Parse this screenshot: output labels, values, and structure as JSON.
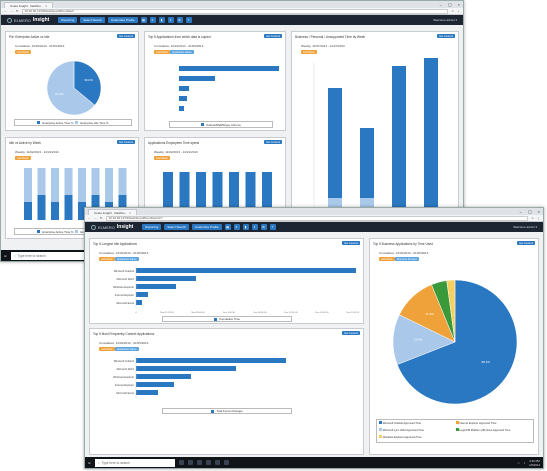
{
  "browser": {
    "tab_title": "Cueto Insight · Dashbo...",
    "tab_title2": "Cueto Insight · Dashbo...",
    "url": "10.20.60.197/#/dashboard/RootDash",
    "url2": "10.20.60.197/#/dashboard/RootDash/1/7"
  },
  "app": {
    "brand_small": "ELMERO",
    "brand": "Insight",
    "nav": [
      "Reporting",
      "Select Search",
      "Customize Profile"
    ],
    "welcome": "Welcome admin ▾"
  },
  "colors": {
    "blue": "#2a78c2",
    "light": "#a9c8ea",
    "orange": "#f0a23a"
  },
  "win1": {
    "p1": {
      "title": "Pie: Enterprise Active vs Idle",
      "get": "Get Content",
      "date": "Cumulative, 10/22/2013 - 01/06/2014",
      "btn": "Last Week",
      "pie": {
        "type": "pie",
        "values": [
          36.0,
          64.0
        ],
        "labels": [
          "36.0%",
          "64.0%"
        ]
      },
      "legend": [
        "Enterprise Active Time %",
        "Enterprise Idle Time %"
      ]
    },
    "p2": {
      "title": "Top 5 Applications from which data is copied",
      "get": "Get Content",
      "date": "Cumulative, 10/21/2013 - 01/06/2014",
      "btn1": "Last Week",
      "btn2": "Application Name",
      "legend": "Outlook/Mail/Skype Chrome"
    },
    "p3": {
      "title": "Business / Personal / Unsupported Time by Week",
      "get": "Get Content",
      "date": "Weekly, 11/07/2013 - 12/27/2013",
      "btn": "Last Week"
    },
    "p4": {
      "title": "Idle vs Active by Week",
      "get": "Get Content",
      "date": "Weekly, 11/02/2013 - 12/21/2013",
      "btn": "Last Week",
      "legend": [
        "Enterprise Active Time %",
        "Enterprise Idle Time %"
      ]
    },
    "p5": {
      "title": "Applications Employees Time spend",
      "get": "Get Content",
      "date": "Weekly, 11/02/2013 - 12/21/2013",
      "btn": "Last Week"
    }
  },
  "win2": {
    "q1": {
      "title": "Top 5 Longest Idle Applications",
      "get": "Get Content",
      "date": "Cumulative, 12/01/2013 - 01/05/2014",
      "btn1": "Last Week",
      "btn2": "Application Name",
      "legend": "Cumulative Time",
      "categories": [
        "Microsoft Outlook",
        "Microsoft Word",
        "Windows Explorer",
        "Internet Explorer",
        "Microsoft Excel"
      ],
      "xticks": [
        "0",
        "Nov 23 23:30",
        "Nov 28 00:00",
        "Dec 3 00:30",
        "Dec 08 01:00",
        "Dec 13 01:30",
        "Dec 18 02:00",
        "Dec 23 02:30"
      ]
    },
    "q2": {
      "title": "Top 5 Most Frequently Context Applications",
      "get": "Get Content",
      "date": "Cumulative, 12/01/2013 - 01/05/2014",
      "btn1": "Last Week",
      "btn2": "Application Name",
      "legend": "Total Focus Changes",
      "categories": [
        "Microsoft Outlook",
        "Microsoft Word",
        "Windows Explorer",
        "Internet Explorer",
        "Microsoft Excel"
      ]
    },
    "q3": {
      "title": "Top 5 Business Applications by Time Used",
      "get": "Get Content",
      "date": "Cumulative, 12/01/2013 - 01/05/2014",
      "btn1": "Last Week",
      "btn2": "Business Process",
      "pie": {
        "type": "pie",
        "values": [
          68.1,
          13.0,
          11.4,
          4.0,
          2.1
        ],
        "labels": [
          "68.1%",
          "13.0%",
          "11.4%",
          "",
          ""
        ]
      },
      "legend": [
        "Microsoft Outlook Approved Time",
        "Internet Explorer Approved Time",
        "Microsoft Lync 2010 Approved Time",
        "Legal PM Platform (IB) Issue Approved Time",
        "Windows Explorer Approved Time"
      ]
    }
  },
  "taskbar": {
    "search": "Type here to search",
    "time1": "2:35 PM",
    "date1": "1/6/2014",
    "time2": "2:36 PM",
    "date2": "1/6/2014"
  }
}
